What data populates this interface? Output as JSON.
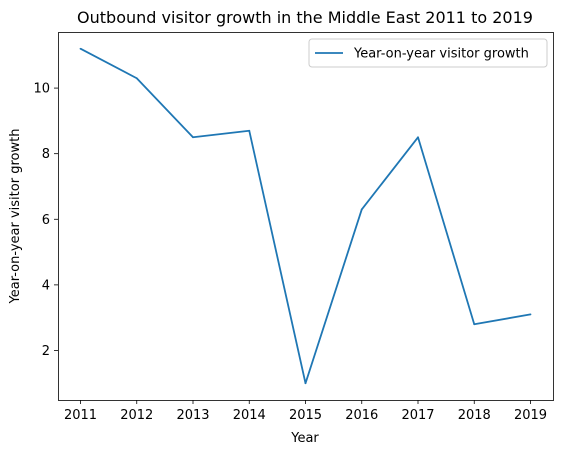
{
  "chart_data": {
    "type": "line",
    "title": "Outbound visitor growth in the Middle East 2011 to 2019",
    "xlabel": "Year",
    "ylabel": "Year-on-year visitor growth",
    "x": [
      "2011",
      "2012",
      "2013",
      "2014",
      "2015",
      "2016",
      "2017",
      "2018",
      "2019"
    ],
    "series": [
      {
        "name": "Year-on-year visitor growth",
        "color": "#1f77b4",
        "values": [
          11.2,
          10.3,
          8.5,
          8.7,
          1.0,
          6.3,
          8.5,
          2.8,
          3.1
        ]
      }
    ],
    "yticks": [
      "2",
      "4",
      "6",
      "8",
      "10"
    ],
    "ylim": [
      0.49,
      11.71
    ],
    "grid": false,
    "legend_position": "upper right"
  }
}
